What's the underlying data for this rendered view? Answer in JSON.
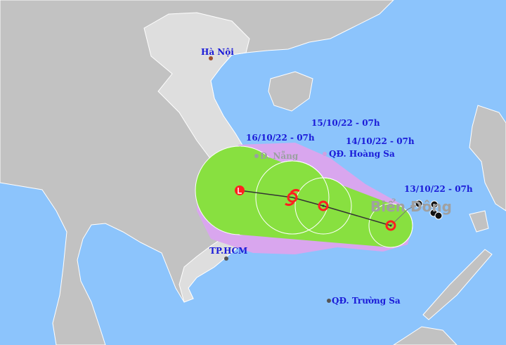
{
  "map": {
    "colors": {
      "sea": "#8cc4fc",
      "land": "#c2c2c2",
      "vietnam": "#dedede",
      "cone": "#d9a6ee",
      "wind_zone": "#88e040",
      "track": "#333333",
      "center_marker": "#ff2020"
    },
    "places": {
      "hanoi": "Hà Nội",
      "danang": "Đ. Nẵng",
      "hoangsa": "QĐ. Hoàng Sa",
      "hcm": "TP.HCM",
      "truongsa": "QĐ. Trường Sa",
      "sea": "Biển Đông"
    },
    "forecast_times": [
      {
        "label": "13/10/22 - 07h",
        "symbol": "tropical-depression"
      },
      {
        "label": "14/10/22 - 07h",
        "symbol": "tropical-depression"
      },
      {
        "label": "15/10/22 - 07h",
        "symbol": "tropical-storm"
      },
      {
        "label": "16/10/22 - 07h",
        "symbol": "low-pressure"
      }
    ]
  }
}
